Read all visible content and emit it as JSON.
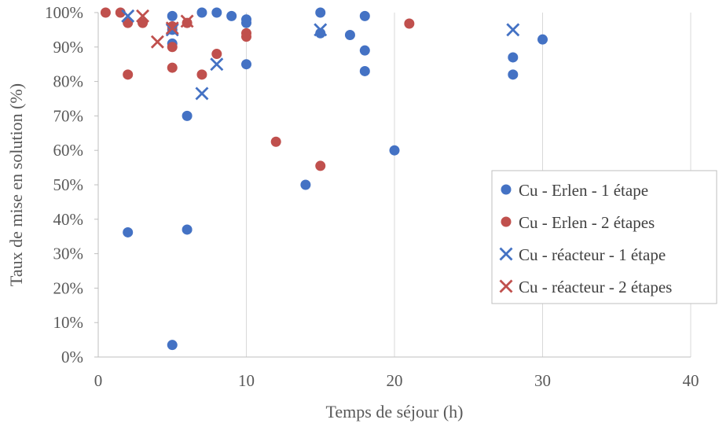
{
  "chart_data": {
    "type": "scatter",
    "title": "",
    "xlabel": "Temps de séjour (h)",
    "ylabel": "Taux de mise en solution (%)",
    "xlim": [
      0,
      40
    ],
    "ylim": [
      0,
      1
    ],
    "x_ticks": [
      0,
      10,
      20,
      30,
      40
    ],
    "x_tick_labels": [
      "0",
      "10",
      "20",
      "30",
      "40"
    ],
    "y_ticks": [
      0,
      0.1,
      0.2,
      0.3,
      0.4,
      0.5,
      0.6,
      0.7,
      0.8,
      0.9,
      1.0
    ],
    "y_tick_labels": [
      "0%",
      "10%",
      "20%",
      "30%",
      "40%",
      "50%",
      "60%",
      "70%",
      "80%",
      "90%",
      "100%"
    ],
    "grid": "vertical",
    "legend_position": "right",
    "series": [
      {
        "name": "Cu - Erlen - 1 étape",
        "marker": "circle",
        "color": "#4472c4",
        "points": [
          {
            "x": 2,
            "y": 0.362
          },
          {
            "x": 5,
            "y": 0.035
          },
          {
            "x": 5,
            "y": 0.91
          },
          {
            "x": 5,
            "y": 0.99
          },
          {
            "x": 5,
            "y": 0.95
          },
          {
            "x": 6,
            "y": 0.37
          },
          {
            "x": 6,
            "y": 0.7
          },
          {
            "x": 7,
            "y": 1.0
          },
          {
            "x": 8,
            "y": 1.0
          },
          {
            "x": 9,
            "y": 0.99
          },
          {
            "x": 10,
            "y": 0.98
          },
          {
            "x": 10,
            "y": 0.97
          },
          {
            "x": 10,
            "y": 0.85
          },
          {
            "x": 14,
            "y": 0.5
          },
          {
            "x": 15,
            "y": 1.0
          },
          {
            "x": 15,
            "y": 0.94
          },
          {
            "x": 17,
            "y": 0.935
          },
          {
            "x": 18,
            "y": 0.99
          },
          {
            "x": 18,
            "y": 0.89
          },
          {
            "x": 18,
            "y": 0.83
          },
          {
            "x": 20,
            "y": 0.6
          },
          {
            "x": 28,
            "y": 0.87
          },
          {
            "x": 28,
            "y": 0.82
          },
          {
            "x": 30,
            "y": 0.922
          }
        ]
      },
      {
        "name": "Cu - Erlen - 2 étapes",
        "marker": "circle",
        "color": "#c0504d",
        "points": [
          {
            "x": 0.5,
            "y": 1.0
          },
          {
            "x": 1.5,
            "y": 1.0
          },
          {
            "x": 2,
            "y": 0.97
          },
          {
            "x": 2,
            "y": 0.82
          },
          {
            "x": 3,
            "y": 0.97
          },
          {
            "x": 5,
            "y": 0.96
          },
          {
            "x": 5,
            "y": 0.9
          },
          {
            "x": 5,
            "y": 0.84
          },
          {
            "x": 6,
            "y": 0.97
          },
          {
            "x": 7,
            "y": 0.82
          },
          {
            "x": 8,
            "y": 0.88
          },
          {
            "x": 10,
            "y": 0.94
          },
          {
            "x": 10,
            "y": 0.93
          },
          {
            "x": 12,
            "y": 0.625
          },
          {
            "x": 15,
            "y": 0.555
          },
          {
            "x": 21,
            "y": 0.968
          }
        ]
      },
      {
        "name": "Cu - réacteur - 1 étape",
        "marker": "x",
        "color": "#4472c4",
        "points": [
          {
            "x": 2,
            "y": 0.99
          },
          {
            "x": 5,
            "y": 0.95
          },
          {
            "x": 7,
            "y": 0.765
          },
          {
            "x": 8,
            "y": 0.85
          },
          {
            "x": 15,
            "y": 0.95
          },
          {
            "x": 28,
            "y": 0.95
          }
        ]
      },
      {
        "name": "Cu - réacteur - 2 étapes",
        "marker": "x",
        "color": "#c0504d",
        "points": [
          {
            "x": 3,
            "y": 0.99
          },
          {
            "x": 4,
            "y": 0.915
          },
          {
            "x": 5,
            "y": 0.955
          },
          {
            "x": 6,
            "y": 0.975
          }
        ]
      }
    ]
  }
}
